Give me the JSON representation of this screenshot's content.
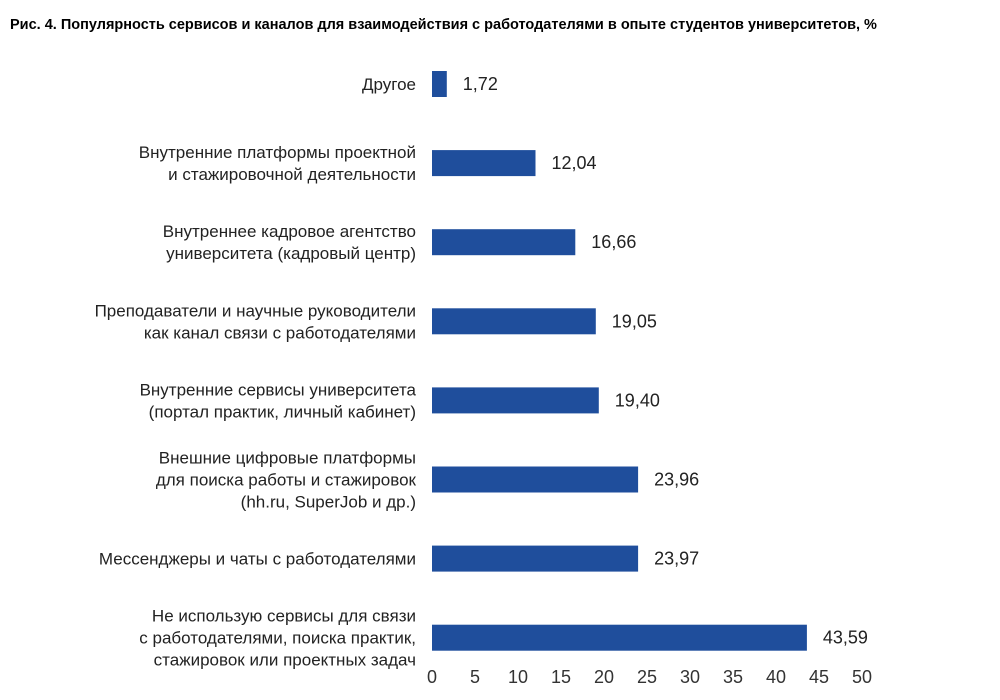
{
  "title": "Рис. 4. Популярность сервисов и каналов для взаимодействия с работодателями в опыте студентов университетов, %",
  "chart_data": {
    "type": "bar",
    "orientation": "horizontal",
    "categories": [
      [
        "Другое"
      ],
      [
        "Внутренние платформы проектной",
        "и стажировочной деятельности"
      ],
      [
        "Внутреннее кадровое агентство",
        "университета (кадровый центр)"
      ],
      [
        "Преподаватели и научные руководители",
        "как канал связи с работодателями"
      ],
      [
        "Внутренние сервисы университета",
        "(портал практик, личный кабинет)"
      ],
      [
        "Внешние цифровые платформы",
        "для поиска работы и стажировок",
        "(hh.ru, SuperJob и др.)"
      ],
      [
        "Мессенджеры и чаты с работодателями"
      ],
      [
        "Не использую сервисы для связи",
        "с работодателями, поиска практик,",
        "стажировок или проектных задач"
      ]
    ],
    "values": [
      1.72,
      12.04,
      16.66,
      19.05,
      19.4,
      23.96,
      23.97,
      43.59
    ],
    "value_labels": [
      "1,72",
      "12,04",
      "16,66",
      "19,05",
      "19,40",
      "23,96",
      "23,97",
      "43,59"
    ],
    "xlim": [
      0,
      50
    ],
    "x_ticks": [
      0,
      5,
      10,
      15,
      20,
      25,
      30,
      35,
      40,
      45,
      50
    ],
    "bar_color": "#1f4e9c",
    "grid": false
  }
}
